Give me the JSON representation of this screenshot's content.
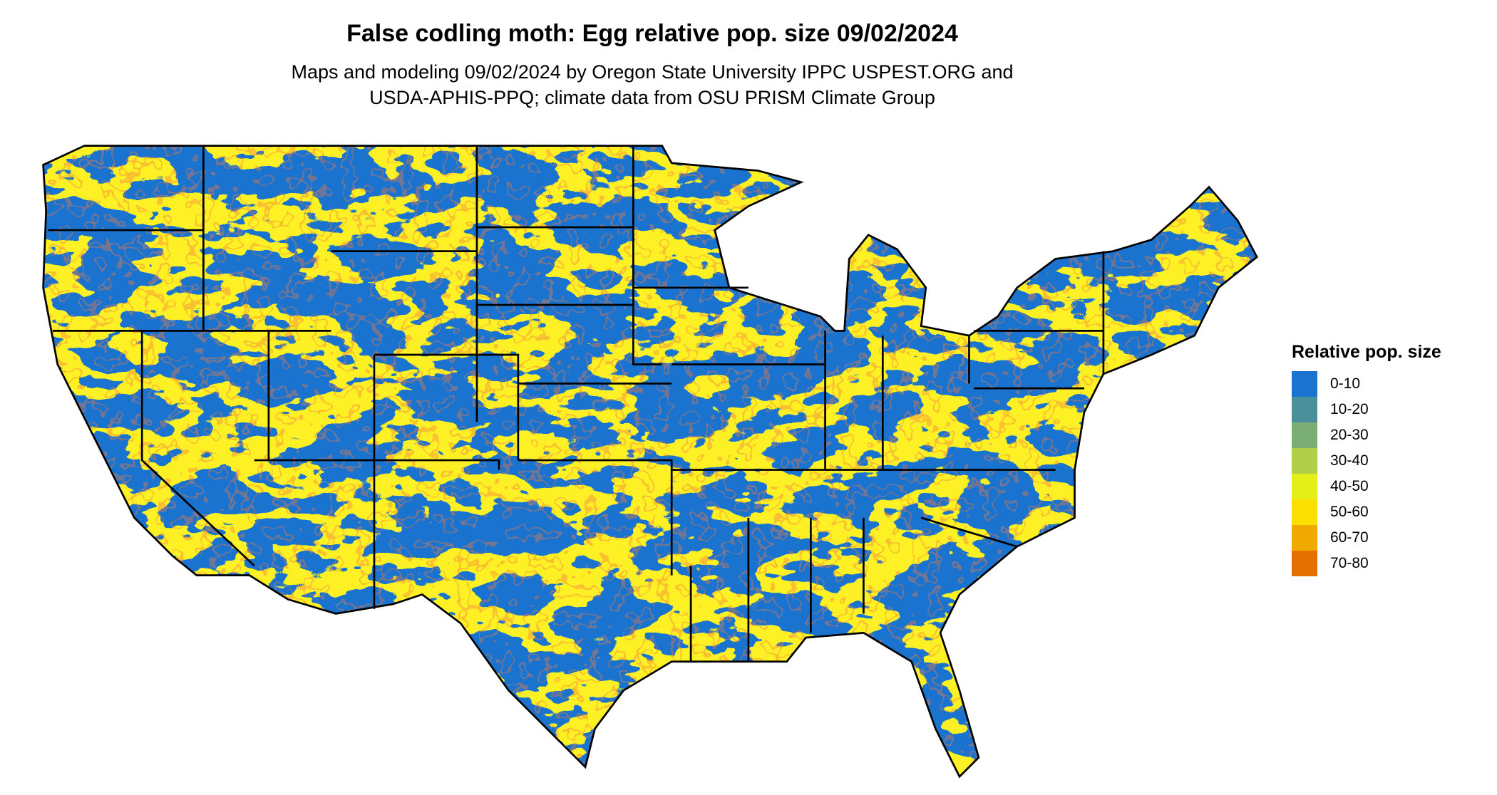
{
  "header": {
    "title": "False codling moth: Egg relative pop. size 09/02/2024",
    "subtitle_line1": "Maps and modeling 09/02/2024 by Oregon State University IPPC USPEST.ORG and",
    "subtitle_line2": "USDA-APHIS-PPQ; climate data from OSU PRISM Climate Group"
  },
  "chart_data": {
    "type": "heatmap",
    "title": "False codling moth: Egg relative pop. size 09/02/2024",
    "region": "Contiguous United States",
    "legend_title": "Relative pop. size",
    "legend_placement": "right",
    "categories": [
      "0-10",
      "10-20",
      "20-30",
      "30-40",
      "40-50",
      "50-60",
      "60-70",
      "70-80"
    ],
    "colors": [
      "#1a73cf",
      "#4a8f9a",
      "#7aae75",
      "#b1cf48",
      "#e4ef17",
      "#f9e000",
      "#f0aa00",
      "#e57000"
    ]
  },
  "legend": {
    "title": "Relative pop. size",
    "items": [
      {
        "label": "0-10",
        "color": "#1a73cf"
      },
      {
        "label": "10-20",
        "color": "#4a8f9a"
      },
      {
        "label": "20-30",
        "color": "#7aae75"
      },
      {
        "label": "30-40",
        "color": "#b1cf48"
      },
      {
        "label": "40-50",
        "color": "#e4ef17"
      },
      {
        "label": "50-60",
        "color": "#f9e000"
      },
      {
        "label": "60-70",
        "color": "#f0aa00"
      },
      {
        "label": "70-80",
        "color": "#e57000"
      }
    ]
  }
}
